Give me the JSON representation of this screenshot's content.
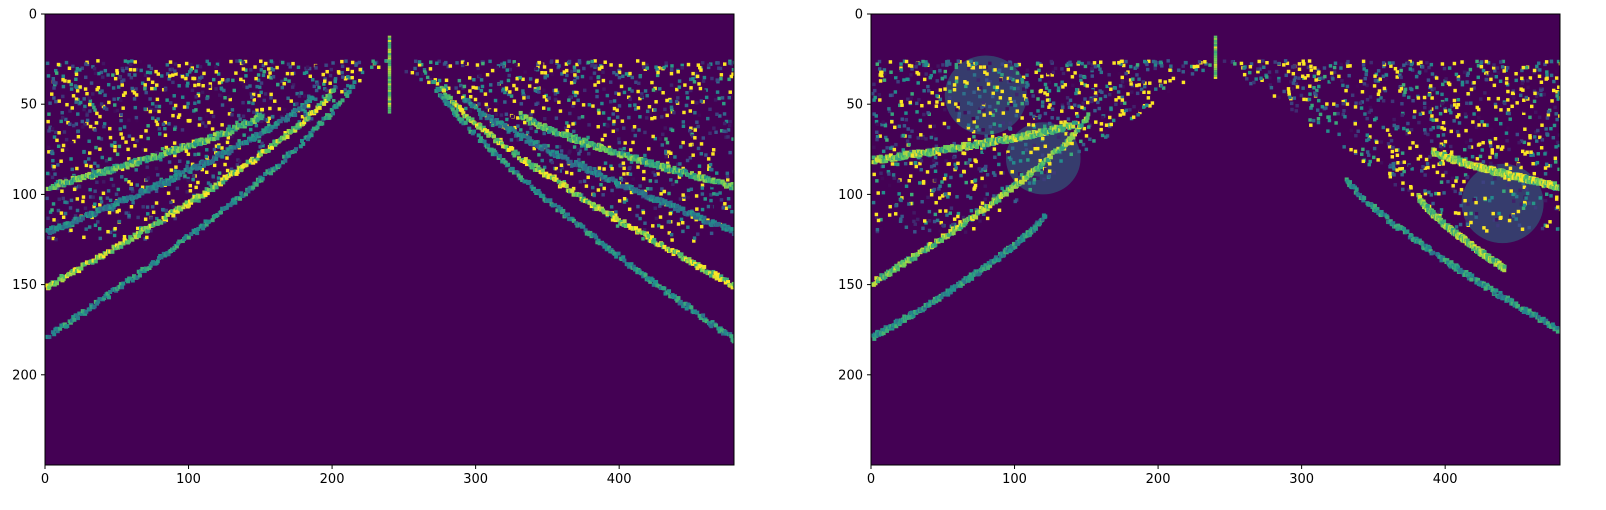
{
  "chart_data": [
    {
      "type": "heatmap",
      "title": "",
      "xlabel": "",
      "ylabel": "",
      "xlim": [
        0,
        480
      ],
      "ylim": [
        250,
        0
      ],
      "xticks": [
        0,
        100,
        200,
        300,
        400
      ],
      "yticks": [
        0,
        50,
        100,
        150,
        200
      ],
      "xtick_labels": [
        "0",
        "100",
        "200",
        "300",
        "400"
      ],
      "ytick_labels": [
        "0",
        "50",
        "100",
        "150",
        "200"
      ],
      "colormap": "viridis",
      "background_color": "#440154",
      "highlight_color": "#fde725",
      "features": {
        "top_noise_rows": [
          25,
          125
        ],
        "apex": {
          "x": 240,
          "y_from": 12,
          "y_to": 55
        },
        "left_arcs": [
          {
            "x_start": 0,
            "y_start": 150,
            "x_end": 200,
            "y_end": 40,
            "strength": 1.0
          },
          {
            "x_start": 0,
            "y_start": 178,
            "x_end": 215,
            "y_end": 35,
            "strength": 0.6
          },
          {
            "x_start": 0,
            "y_start": 120,
            "x_end": 185,
            "y_end": 45,
            "strength": 0.5
          },
          {
            "x_start": 0,
            "y_start": 95,
            "x_end": 150,
            "y_end": 55,
            "strength": 0.8
          }
        ],
        "right_arcs": [
          {
            "x_start": 275,
            "y_start": 40,
            "x_end": 480,
            "y_end": 150,
            "strength": 1.0
          },
          {
            "x_start": 268,
            "y_start": 35,
            "x_end": 480,
            "y_end": 180,
            "strength": 0.6
          },
          {
            "x_start": 290,
            "y_start": 45,
            "x_end": 480,
            "y_end": 120,
            "strength": 0.5
          },
          {
            "x_start": 330,
            "y_start": 55,
            "x_end": 480,
            "y_end": 95,
            "strength": 0.8
          }
        ]
      }
    },
    {
      "type": "heatmap",
      "title": "",
      "xlabel": "",
      "ylabel": "",
      "xlim": [
        0,
        480
      ],
      "ylim": [
        250,
        0
      ],
      "xticks": [
        0,
        100,
        200,
        300,
        400
      ],
      "yticks": [
        0,
        50,
        100,
        150,
        200
      ],
      "xtick_labels": [
        "0",
        "100",
        "200",
        "300",
        "400"
      ],
      "ytick_labels": [
        "0",
        "50",
        "100",
        "150",
        "200"
      ],
      "colormap": "viridis",
      "background_color": "#440154",
      "highlight_color": "#fde725",
      "features": {
        "top_noise_rows": [
          25,
          120
        ],
        "apex": {
          "x": 240,
          "y_from": 12,
          "y_to": 35
        },
        "left_arcs": [
          {
            "x_start": 0,
            "y_start": 148,
            "x_end": 150,
            "y_end": 55,
            "strength": 0.9
          },
          {
            "x_start": 0,
            "y_start": 178,
            "x_end": 120,
            "y_end": 110,
            "strength": 0.6
          },
          {
            "x_start": 0,
            "y_start": 80,
            "x_end": 140,
            "y_end": 60,
            "strength": 0.9
          }
        ],
        "right_arcs": [
          {
            "x_start": 330,
            "y_start": 90,
            "x_end": 480,
            "y_end": 175,
            "strength": 0.6
          },
          {
            "x_start": 380,
            "y_start": 100,
            "x_end": 440,
            "y_end": 140,
            "strength": 0.9
          },
          {
            "x_start": 390,
            "y_start": 75,
            "x_end": 480,
            "y_end": 95,
            "strength": 1.0
          }
        ],
        "blobs": [
          {
            "x": 80,
            "y": 45,
            "r": 22
          },
          {
            "x": 120,
            "y": 80,
            "r": 20
          },
          {
            "x": 440,
            "y": 105,
            "r": 22
          }
        ]
      }
    }
  ]
}
